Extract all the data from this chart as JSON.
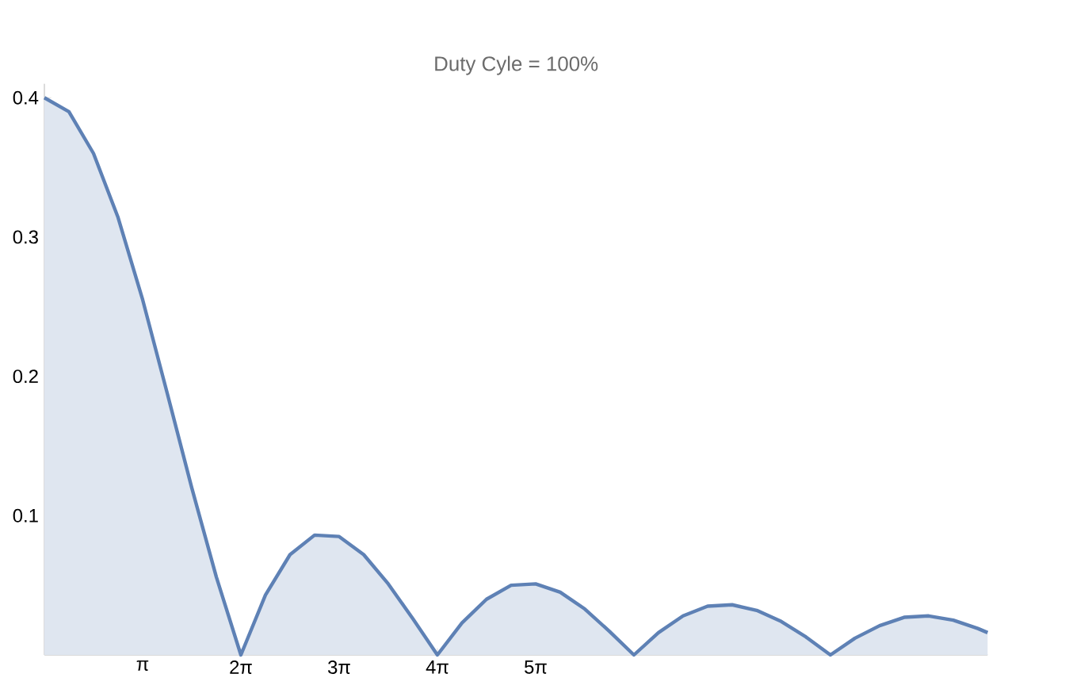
{
  "chart_data": {
    "type": "area",
    "title": "Duty Cyle = 100%",
    "x": [
      0,
      0.785,
      1.571,
      2.356,
      3.142,
      3.927,
      4.712,
      5.498,
      6.283,
      7.069,
      7.854,
      8.639,
      9.425,
      10.21,
      10.996,
      11.781,
      12.566,
      13.352,
      14.137,
      14.923,
      15.708,
      16.493,
      17.279,
      18.064,
      18.85,
      19.635,
      20.42,
      21.206,
      21.991,
      22.777,
      23.562,
      24.347,
      25.133,
      25.918,
      26.704,
      27.489,
      28.274,
      29.06,
      29.845,
      30.159
    ],
    "values": [
      0.4,
      0.39,
      0.36,
      0.314,
      0.255,
      0.188,
      0.12,
      0.056,
      0,
      0.043,
      0.072,
      0.086,
      0.085,
      0.072,
      0.051,
      0.026,
      0,
      0.023,
      0.04,
      0.05,
      0.051,
      0.045,
      0.033,
      0.017,
      0,
      0.016,
      0.028,
      0.035,
      0.036,
      0.032,
      0.024,
      0.013,
      0,
      0.012,
      0.021,
      0.027,
      0.028,
      0.025,
      0.019,
      0.016
    ],
    "color": "#5e81b5",
    "xlim": [
      0,
      30.159
    ],
    "ylim": [
      0,
      0.41
    ],
    "xticks": [
      {
        "value": 3.1416,
        "label": "π"
      },
      {
        "value": 6.2832,
        "label": "2π"
      },
      {
        "value": 9.4248,
        "label": "3π"
      },
      {
        "value": 12.5664,
        "label": "4π"
      },
      {
        "value": 15.708,
        "label": "5π"
      }
    ],
    "yticks": [
      0.1,
      0.2,
      0.3,
      0.4
    ],
    "grid": false
  }
}
